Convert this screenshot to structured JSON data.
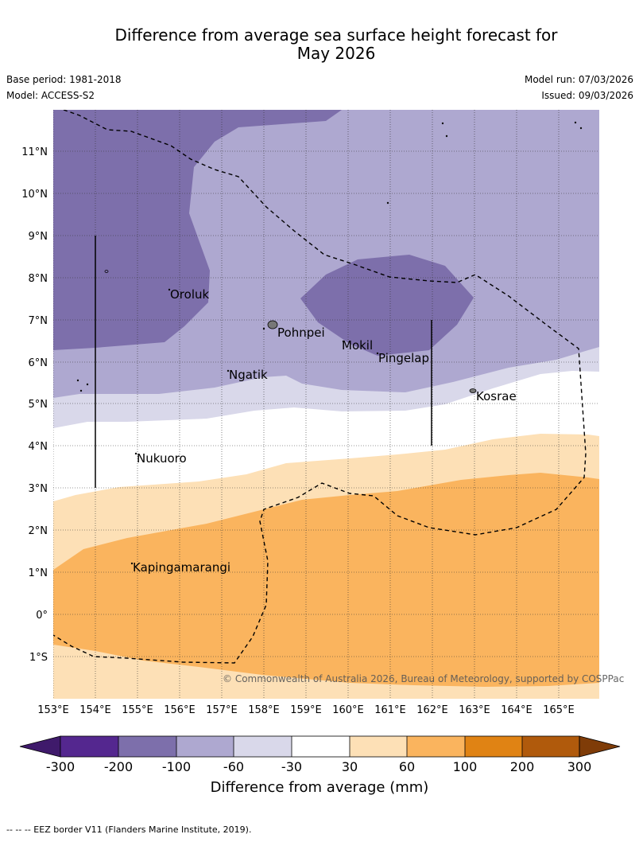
{
  "header": {
    "title_line1": "Difference from average sea surface height forecast for",
    "title_line2": "May 2026",
    "base_period": "Base period: 1981-2018",
    "model": "Model: ACCESS-S2",
    "model_run": "Model run: 07/03/2026",
    "issued": "Issued: 09/03/2026"
  },
  "map": {
    "lat_labels": [
      "11°N",
      "10°N",
      "9°N",
      "8°N",
      "7°N",
      "6°N",
      "5°N",
      "4°N",
      "3°N",
      "2°N",
      "1°N",
      "0°",
      "1°S"
    ],
    "lon_labels": [
      "153°E",
      "154°E",
      "155°E",
      "156°E",
      "157°E",
      "158°E",
      "159°E",
      "160°E",
      "161°E",
      "162°E",
      "163°E",
      "164°E",
      "165°E"
    ],
    "places": [
      {
        "name": "Oroluk",
        "lon": 155.8,
        "lat": 7.6
      },
      {
        "name": "Pohnpei",
        "lon": 158.2,
        "lat": 6.9
      },
      {
        "name": "Mokil",
        "lon": 159.8,
        "lat": 6.4
      },
      {
        "name": "Pingelap",
        "lon": 160.7,
        "lat": 6.2
      },
      {
        "name": "Ngatik",
        "lon": 157.0,
        "lat": 5.8
      },
      {
        "name": "Kosrae",
        "lon": 163.0,
        "lat": 5.3
      },
      {
        "name": "Nukuoro",
        "lon": 155.0,
        "lat": 3.8
      },
      {
        "name": "Kapingamarangi",
        "lon": 154.9,
        "lat": 1.2
      }
    ],
    "copyright": "© Commonwealth of Australia 2026, Bureau of Meteorology, supported by COSPPac"
  },
  "legend": {
    "ticks": [
      "-300",
      "-200",
      "-100",
      "-60",
      "-30",
      "30",
      "60",
      "100",
      "200",
      "300"
    ],
    "label": "Difference from average (mm)",
    "colors": [
      "#3f1a6b",
      "#54278f",
      "#7d6fab",
      "#aea8d0",
      "#d9d8ea",
      "#ffffff",
      "#fde0b6",
      "#fab45e",
      "#e08314",
      "#b05a0c",
      "#7f3c08"
    ]
  },
  "footer": "-- -- -- EEZ border V11 (Flanders Marine Institute, 2019)."
}
